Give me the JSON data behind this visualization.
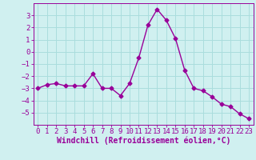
{
  "x": [
    0,
    1,
    2,
    3,
    4,
    5,
    6,
    7,
    8,
    9,
    10,
    11,
    12,
    13,
    14,
    15,
    16,
    17,
    18,
    19,
    20,
    21,
    22,
    23
  ],
  "y": [
    -3.0,
    -2.7,
    -2.6,
    -2.8,
    -2.8,
    -2.8,
    -1.8,
    -3.0,
    -3.0,
    -3.6,
    -2.6,
    -0.5,
    2.2,
    3.5,
    2.6,
    1.1,
    -1.5,
    -3.0,
    -3.2,
    -3.7,
    -4.3,
    -4.5,
    -5.1,
    -5.5
  ],
  "line_color": "#990099",
  "marker": "D",
  "marker_size": 2.5,
  "bg_color": "#d0f0f0",
  "grid_color": "#aadddd",
  "xlabel": "Windchill (Refroidissement éolien,°C)",
  "xlim": [
    -0.5,
    23.5
  ],
  "ylim": [
    -6,
    4
  ],
  "yticks": [
    -5,
    -4,
    -3,
    -2,
    -1,
    0,
    1,
    2,
    3
  ],
  "xticks": [
    0,
    1,
    2,
    3,
    4,
    5,
    6,
    7,
    8,
    9,
    10,
    11,
    12,
    13,
    14,
    15,
    16,
    17,
    18,
    19,
    20,
    21,
    22,
    23
  ],
  "tick_label_fontsize": 6.5,
  "xlabel_fontsize": 7,
  "line_width": 1.0
}
